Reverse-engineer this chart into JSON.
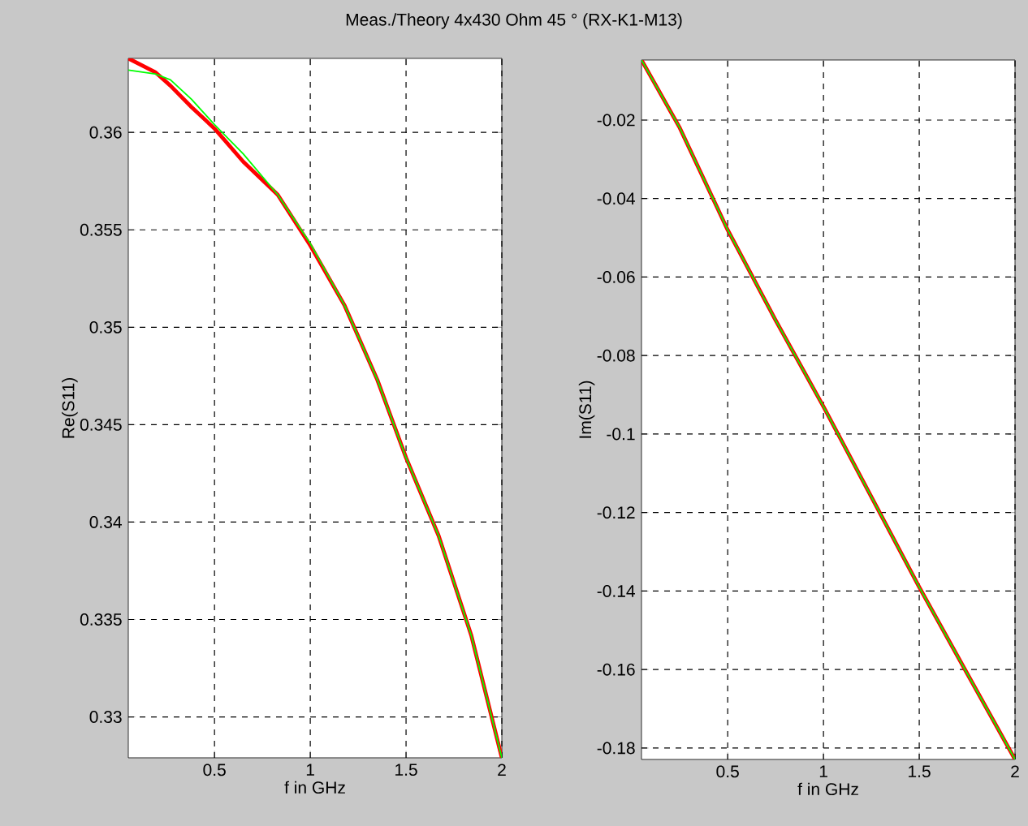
{
  "chart_data": [
    {
      "type": "line",
      "title": "Meas./Theory 4x430 Ohm 45 ° (RX-K1-M13)",
      "xlabel": "f in GHz",
      "ylabel": "Re(S11)",
      "grid": true,
      "line_style": "solid",
      "x": [
        0.05,
        0.19,
        0.27,
        0.38,
        0.5,
        0.65,
        0.83,
        1.0,
        1.18,
        1.35,
        1.5,
        1.67,
        1.84,
        2.0
      ],
      "series": [
        {
          "color": "#ff0000",
          "values": [
            0.3638,
            0.3631,
            0.3624,
            0.3613,
            0.3602,
            0.3585,
            0.3568,
            0.3542,
            0.3511,
            0.3473,
            0.3433,
            0.3393,
            0.3342,
            0.3279
          ]
        },
        {
          "color": "#00ff00",
          "values": [
            0.3632,
            0.363,
            0.3627,
            0.3617,
            0.3604,
            0.3589,
            0.3568,
            0.3543,
            0.3511,
            0.3473,
            0.3433,
            0.3393,
            0.3342,
            0.3279
          ]
        }
      ],
      "xlim": [
        0.05,
        2
      ],
      "xticks": [
        0.5,
        1,
        1.5,
        2
      ],
      "ylim": [
        0.3279,
        0.3638
      ],
      "yticks": [
        0.33,
        0.335,
        0.34,
        0.345,
        0.35,
        0.355,
        0.36
      ]
    },
    {
      "type": "line",
      "xlabel": "f in GHz",
      "ylabel": "Im(S11)",
      "grid": true,
      "line_style": "solid",
      "x": [
        0.05,
        0.25,
        0.5,
        0.75,
        1.0,
        1.25,
        1.5,
        1.75,
        2.0
      ],
      "series": [
        {
          "color": "#ff0000",
          "values": [
            -0.0047,
            -0.022,
            -0.048,
            -0.071,
            -0.093,
            -0.116,
            -0.139,
            -0.161,
            -0.1829
          ]
        },
        {
          "color": "#00ff00",
          "values": [
            -0.0047,
            -0.022,
            -0.048,
            -0.071,
            -0.093,
            -0.116,
            -0.139,
            -0.161,
            -0.1829
          ]
        }
      ],
      "xlim": [
        0.05,
        2
      ],
      "xticks": [
        0.5,
        1,
        1.5,
        2
      ],
      "ylim": [
        -0.1829,
        -0.0047
      ],
      "yticks": [
        -0.18,
        -0.16,
        -0.14,
        -0.12,
        -0.1,
        -0.08,
        -0.06,
        -0.04,
        -0.02
      ]
    }
  ]
}
